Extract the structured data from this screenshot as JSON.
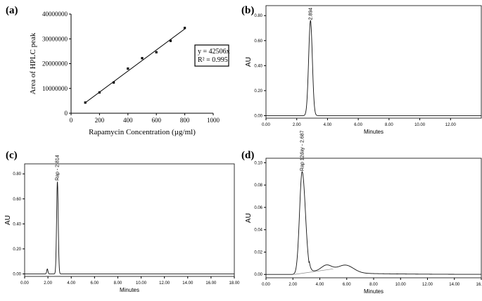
{
  "chart_data": [
    {
      "id": "a",
      "panel_label": "(a)",
      "type": "scatter",
      "xlabel": "Rapamycin Concentration (µg/ml)",
      "ylabel": "Area of HPLC peak",
      "xlim": [
        0,
        1000
      ],
      "ylim": [
        0,
        40000000
      ],
      "x_ticks": [
        "0",
        "200",
        "400",
        "600",
        "800",
        "1000"
      ],
      "y_ticks": [
        "0",
        "10000000",
        "20000000",
        "30000000",
        "40000000"
      ],
      "series": [
        {
          "x": [
            100,
            200,
            300,
            400,
            500,
            600,
            700,
            800
          ],
          "y": [
            4300000,
            8400000,
            12400000,
            18000000,
            22200000,
            24600000,
            29200000,
            34400000
          ]
        }
      ],
      "trendline": {
        "slope": 42506,
        "x_range": [
          100,
          800
        ]
      },
      "annotation": [
        "y = 42506x",
        "R² = 0.995"
      ]
    },
    {
      "id": "b",
      "panel_label": "(b)",
      "type": "line",
      "xlabel": "Minutes",
      "ylabel": "AU",
      "xlim": [
        0,
        14
      ],
      "ylim": [
        -0.02,
        0.88
      ],
      "x_ticks": [
        "0.00",
        "2.00",
        "4.00",
        "6.00",
        "8.00",
        "10.00",
        "12.00"
      ],
      "y_ticks": [
        "0.00",
        "0.20",
        "0.40",
        "0.60",
        "0.80"
      ],
      "peaks": [
        {
          "label": "2.894",
          "time": 2.894,
          "height": 0.76,
          "width": 0.12
        }
      ]
    },
    {
      "id": "c",
      "panel_label": "(c)",
      "type": "line",
      "xlabel": "Minutes",
      "ylabel": "AU",
      "xlim": [
        0,
        18
      ],
      "ylim": [
        -0.02,
        0.88
      ],
      "x_ticks": [
        "0.00",
        "2.00",
        "4.00",
        "6.00",
        "8.00",
        "10.00",
        "12.00",
        "14.00",
        "16.00",
        "18.00"
      ],
      "y_ticks": [
        "0.00",
        "0.20",
        "0.40",
        "0.60",
        "0.80"
      ],
      "peaks": [
        {
          "label": "",
          "time": 1.95,
          "height": 0.04,
          "width": 0.05
        },
        {
          "label": "Rap - 2.814",
          "time": 2.814,
          "height": 0.74,
          "width": 0.07
        }
      ]
    },
    {
      "id": "d",
      "panel_label": "(d)",
      "type": "line",
      "xlabel": "Minutes",
      "ylabel": "AU",
      "xlim": [
        0,
        16
      ],
      "ylim": [
        -0.003,
        0.104
      ],
      "x_ticks": [
        "0.00",
        "2.00",
        "4.00",
        "6.00",
        "8.00",
        "10.00",
        "12.00",
        "14.00",
        "16.00"
      ],
      "y_ticks": [
        "0.00",
        "0.02",
        "0.04",
        "0.06",
        "0.08",
        "0.10"
      ],
      "peaks": [
        {
          "label": "Rap 12day - 2.687",
          "time": 2.687,
          "height": 0.092,
          "width": 0.35
        },
        {
          "label": "",
          "time": 4.5,
          "height": 0.006,
          "width": 0.4
        },
        {
          "label": "",
          "time": 5.9,
          "height": 0.007,
          "width": 0.6
        }
      ]
    }
  ]
}
